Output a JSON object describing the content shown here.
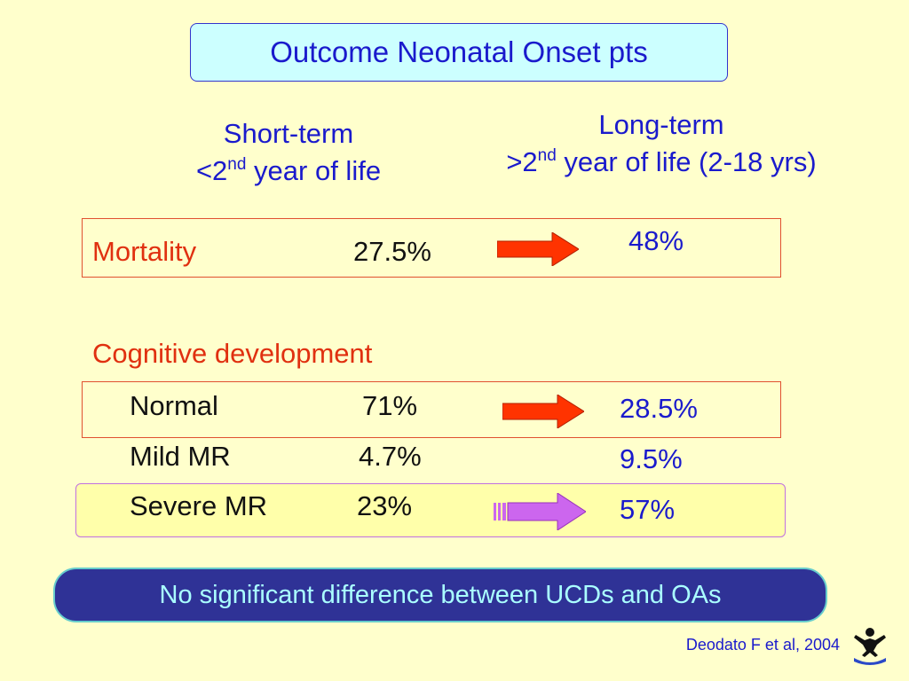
{
  "title": "Outcome Neonatal Onset pts",
  "columns": {
    "short_term": {
      "line1": "Short-term",
      "prefix": "<2",
      "sup": "nd",
      "rest": " year of life"
    },
    "long_term": {
      "line1": "Long-term",
      "prefix": ">2",
      "sup": "nd",
      "rest": " year of life (2-18 yrs)"
    }
  },
  "mortality": {
    "label": "Mortality",
    "short": "27.5%",
    "long": "48%"
  },
  "cognitive": {
    "heading": "Cognitive development",
    "rows": [
      {
        "label": "Normal",
        "short": "71%",
        "long": "28.5%"
      },
      {
        "label": "Mild MR",
        "short": "4.7%",
        "long": "9.5%"
      },
      {
        "label": "Severe MR",
        "short": "23%",
        "long": "57%"
      }
    ]
  },
  "banner": "No significant  difference between UCDs and OAs",
  "citation": "Deodato F et al, 2004",
  "icons": [
    "red-arrow-icon",
    "purple-arrow-icon",
    "logo-figure-icon"
  ],
  "colors": {
    "background": "#ffffcc",
    "title_fill": "#ccffff",
    "blue_text": "#1a1acc",
    "red_text": "#e03010",
    "red_arrow": "#ff3300",
    "purple_arrow": "#cc66ee",
    "banner_fill": "#2f3296",
    "banner_text": "#aaffff"
  }
}
